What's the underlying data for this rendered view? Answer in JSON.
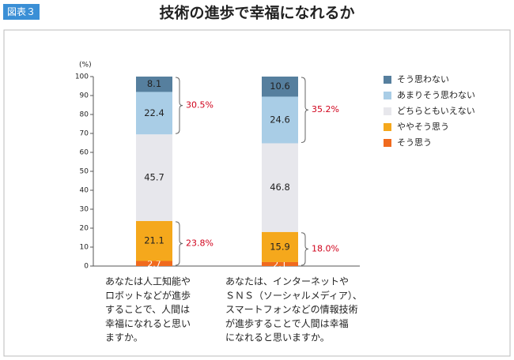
{
  "figure_label": "図表３",
  "chart_data": {
    "type": "stacked-bar",
    "title": "技術の進歩で幸福になれるか",
    "y_unit": "(%)",
    "categories": [
      [
        "あなたは人工知能や",
        "ロボットなどが進歩",
        "することで、人間は",
        "幸福になれると思い",
        "ますか。"
      ],
      [
        "あなたは、インターネットや",
        "ＳＮＳ（ソーシャルメディア）、",
        "スマートフォンなどの情報技術",
        "が進歩することで人間は幸福",
        "になれると思いますか。"
      ]
    ],
    "series": [
      {
        "name": "そう思う",
        "color": "#f06a1e",
        "values": [
          2.7,
          2.1
        ]
      },
      {
        "name": "ややそう思う",
        "color": "#f5a81c",
        "values": [
          21.1,
          15.9
        ]
      },
      {
        "name": "どちらともいえない",
        "color": "#e7e7ec",
        "values": [
          45.7,
          46.8
        ]
      },
      {
        "name": "あまりそう思わない",
        "color": "#a9cde6",
        "values": [
          22.4,
          24.6
        ]
      },
      {
        "name": "そう思わない",
        "color": "#567f9e",
        "values": [
          8.1,
          10.6
        ]
      }
    ],
    "annotations": [
      [
        "23.8%",
        "30.5%"
      ],
      [
        "18.0%",
        "35.2%"
      ]
    ],
    "ylim": [
      0,
      100
    ],
    "yticks": [
      0,
      10,
      20,
      30,
      40,
      50,
      60,
      70,
      80,
      90,
      100
    ],
    "legend": "right"
  }
}
